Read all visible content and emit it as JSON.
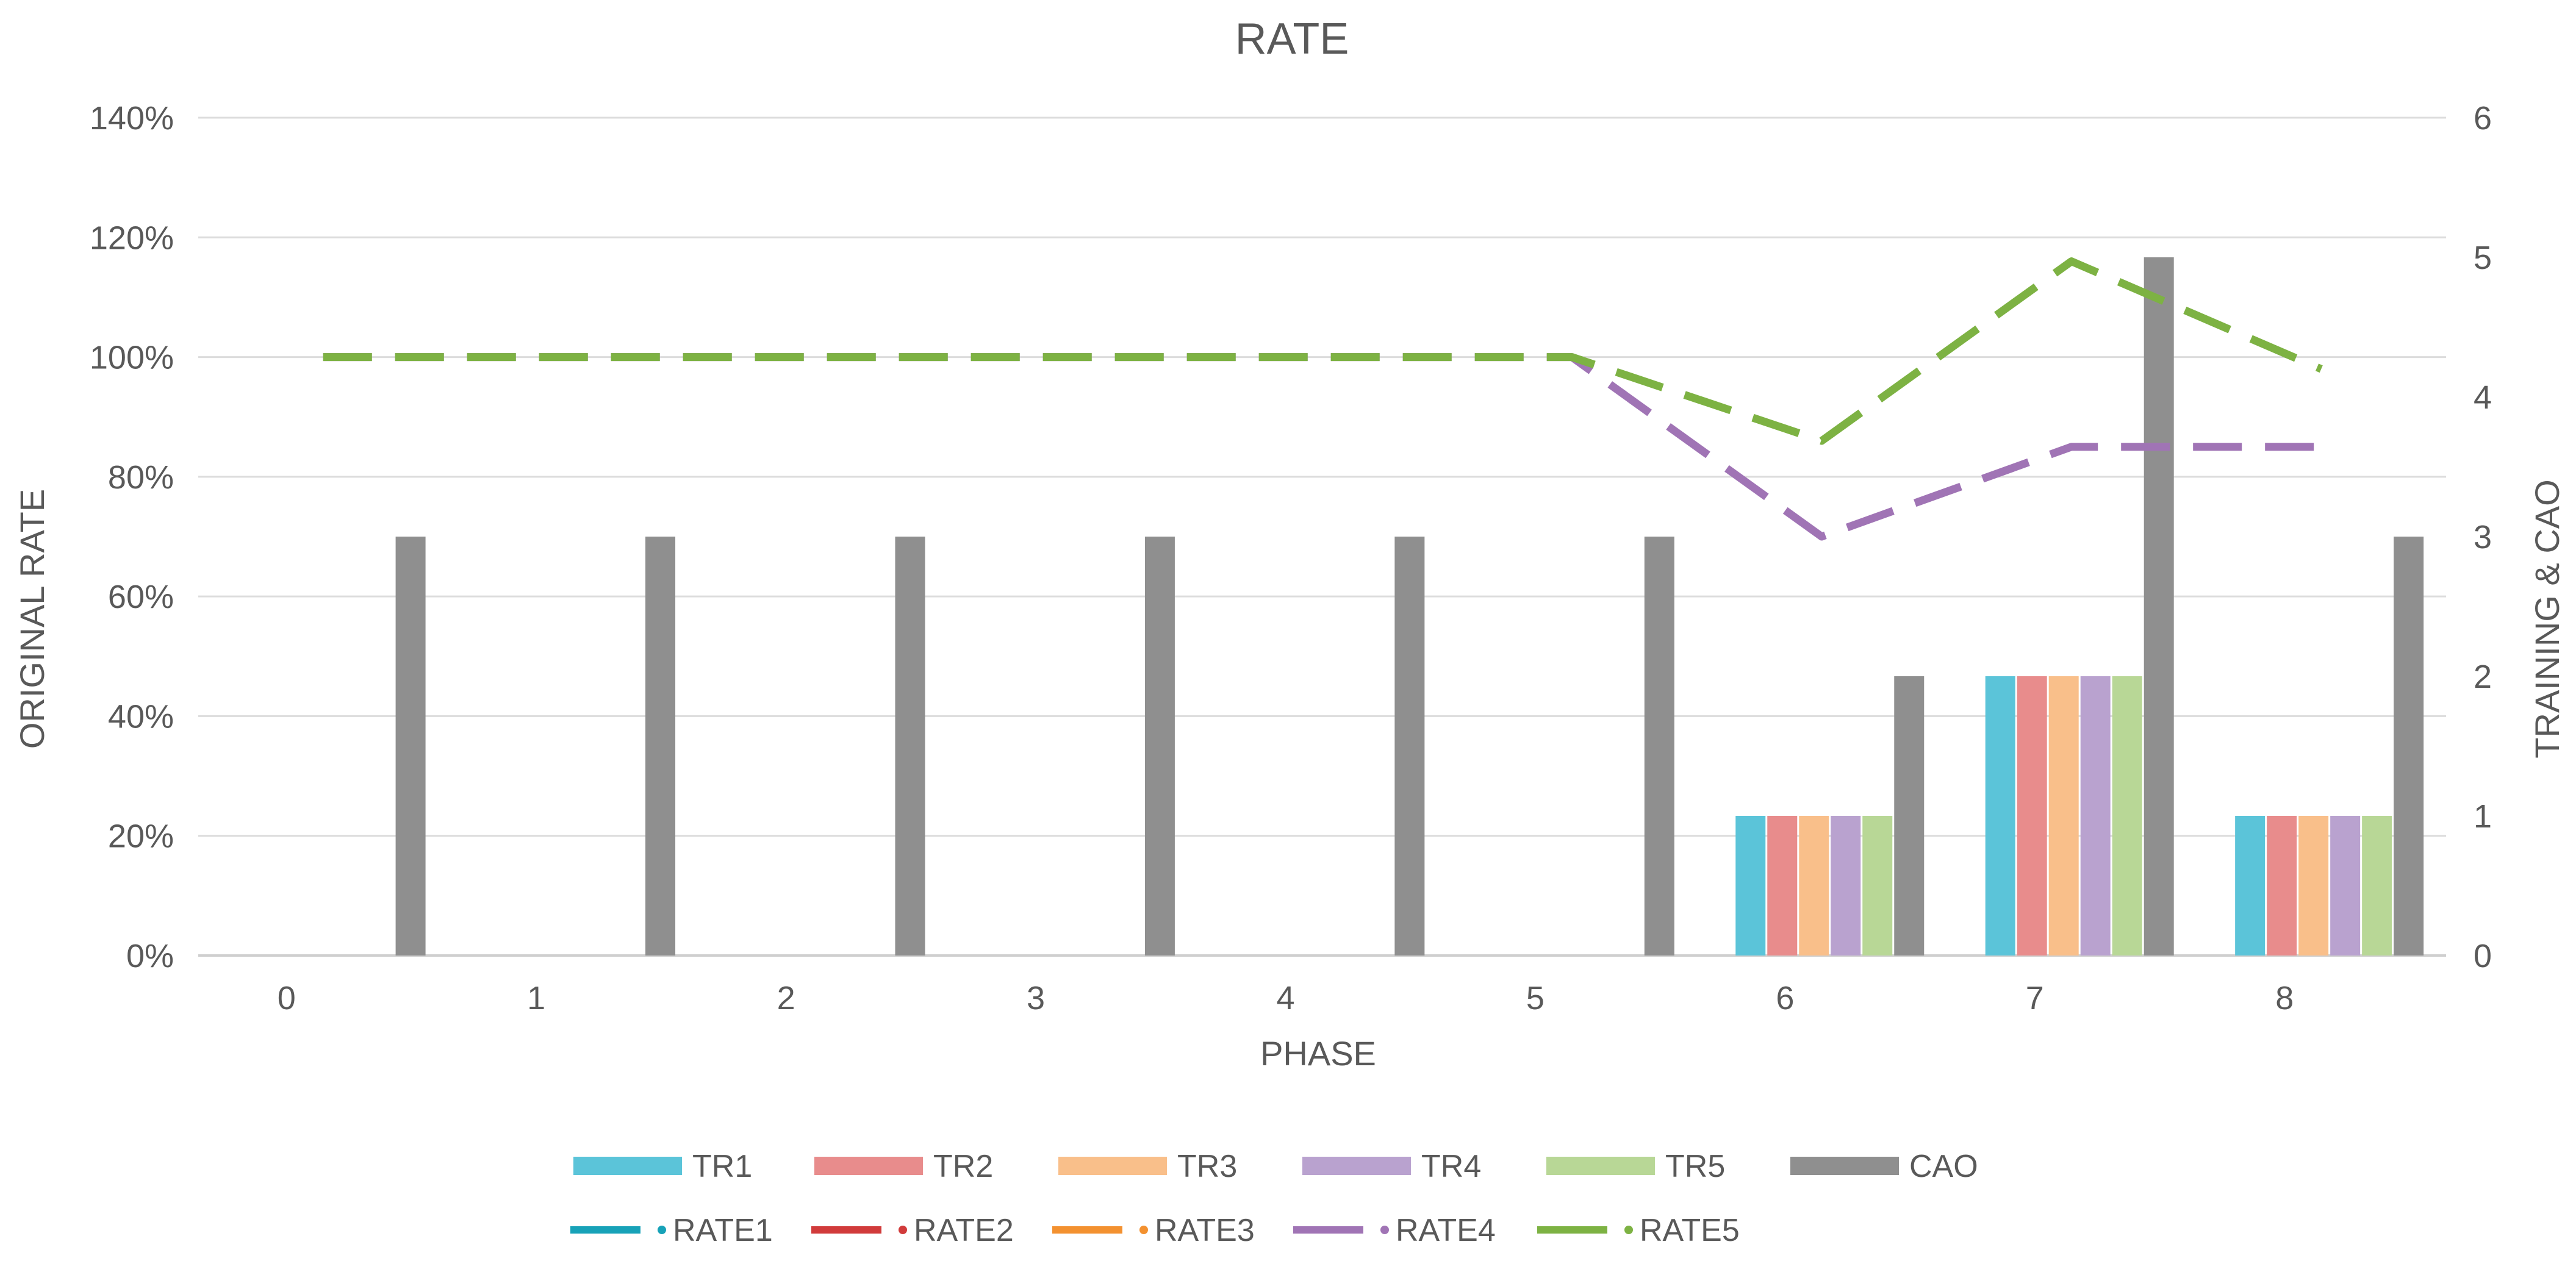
{
  "chart_data": {
    "type": "bar+line",
    "title": "RATE",
    "xlabel": "PHASE",
    "ylabel": "ORIGINAL RATE",
    "y2label": "TRAINING & CAO",
    "categories": [
      "0",
      "1",
      "2",
      "3",
      "4",
      "5",
      "6",
      "7",
      "8"
    ],
    "ylim": [
      0,
      1.4
    ],
    "y2lim": [
      0,
      6
    ],
    "y_ticks": [
      "0%",
      "20%",
      "40%",
      "60%",
      "80%",
      "100%",
      "120%",
      "140%"
    ],
    "y2_ticks": [
      "0",
      "1",
      "2",
      "3",
      "4",
      "5",
      "6"
    ],
    "grid": true,
    "legend_position": "bottom",
    "bar_series": [
      {
        "name": "TR1",
        "color": "#5bc4d9",
        "values": [
          0,
          0,
          0,
          0,
          0,
          0,
          1,
          2,
          1
        ]
      },
      {
        "name": "TR2",
        "color": "#e88c8c",
        "values": [
          0,
          0,
          0,
          0,
          0,
          0,
          1,
          2,
          1
        ]
      },
      {
        "name": "TR3",
        "color": "#f9bf8a",
        "values": [
          0,
          0,
          0,
          0,
          0,
          0,
          1,
          2,
          1
        ]
      },
      {
        "name": "TR4",
        "color": "#b9a2cf",
        "values": [
          0,
          0,
          0,
          0,
          0,
          0,
          1,
          2,
          1
        ]
      },
      {
        "name": "TR5",
        "color": "#b8d796",
        "values": [
          0,
          0,
          0,
          0,
          0,
          0,
          1,
          2,
          1
        ]
      },
      {
        "name": "CAO",
        "color": "#8f8f8f",
        "values": [
          3,
          3,
          3,
          3,
          3,
          3,
          2,
          5,
          3
        ]
      }
    ],
    "line_series": [
      {
        "name": "RATE1",
        "color": "#17a2b8",
        "values": [
          null,
          null,
          null,
          null,
          null,
          null,
          null,
          null,
          null
        ]
      },
      {
        "name": "RATE2",
        "color": "#d13b3b",
        "values": [
          null,
          null,
          null,
          null,
          null,
          null,
          null,
          null,
          null
        ]
      },
      {
        "name": "RATE3",
        "color": "#f39130",
        "values": [
          null,
          null,
          null,
          null,
          null,
          null,
          null,
          null,
          null
        ]
      },
      {
        "name": "RATE4",
        "color": "#a074b5",
        "values": [
          1.0,
          1.0,
          1.0,
          1.0,
          1.0,
          1.0,
          0.7,
          0.85,
          0.85
        ]
      },
      {
        "name": "RATE5",
        "color": "#7db243",
        "values": [
          1.0,
          1.0,
          1.0,
          1.0,
          1.0,
          1.0,
          0.86,
          1.16,
          0.98
        ]
      }
    ]
  }
}
